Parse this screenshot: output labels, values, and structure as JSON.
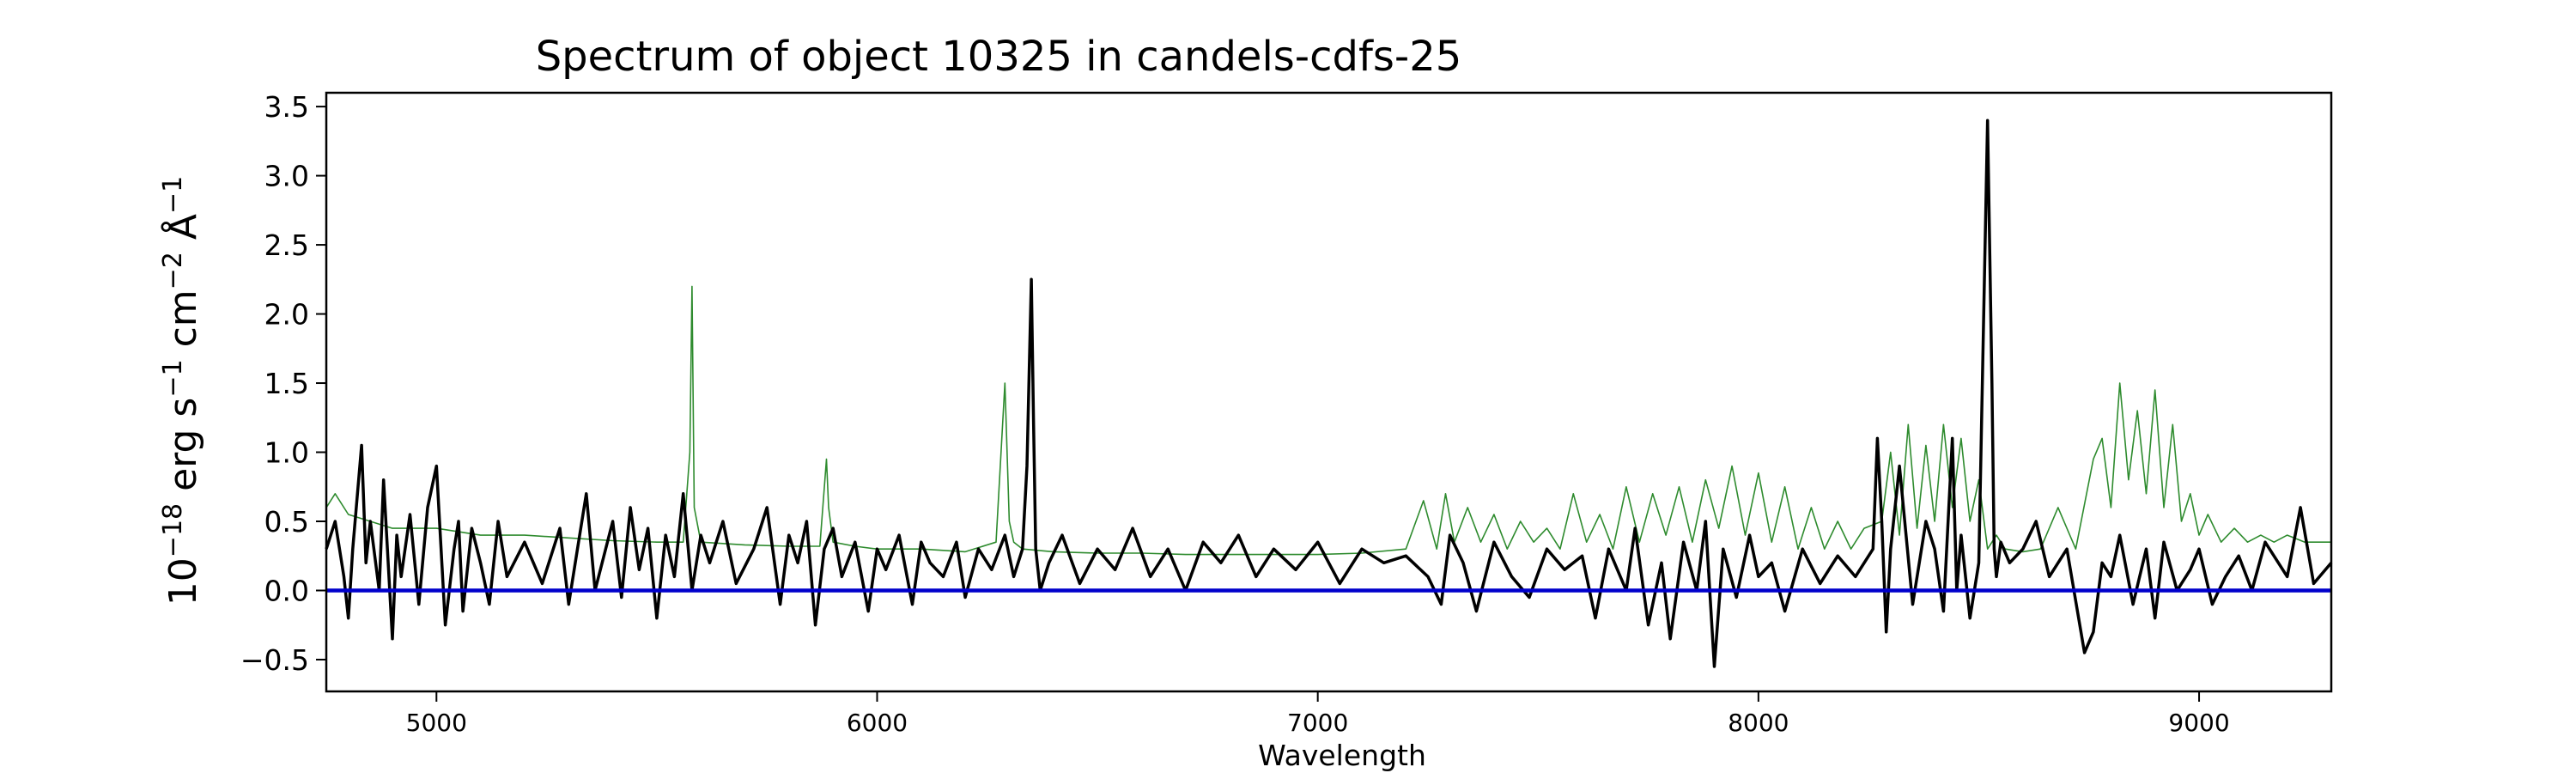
{
  "chart_data": {
    "type": "line",
    "title": "Spectrum of object 10325 in candels-cdfs-25",
    "xlabel": "Wavelength",
    "ylabel": {
      "base": "10",
      "exp1": "−18",
      "mid1": " erg s",
      "exp2": "−1",
      "mid2": " cm",
      "exp3": "−2",
      "mid3": " Å",
      "exp4": "−1"
    },
    "xlim": [
      4750,
      9300
    ],
    "ylim": [
      -0.73,
      3.6
    ],
    "x_ticks": [
      5000,
      6000,
      7000,
      8000,
      9000
    ],
    "y_ticks": [
      -0.5,
      0.0,
      0.5,
      1.0,
      1.5,
      2.0,
      2.5,
      3.0,
      3.5
    ],
    "x_tick_labels": [
      "5000",
      "6000",
      "7000",
      "8000",
      "9000"
    ],
    "y_tick_labels": [
      "−0.5",
      "0.0",
      "0.5",
      "1.0",
      "1.5",
      "2.0",
      "2.5",
      "3.0",
      "3.5"
    ],
    "grid": false,
    "legend": "none",
    "series": [
      {
        "role": "flux",
        "color": "#000000",
        "x": [
          4750,
          4770,
          4790,
          4800,
          4810,
          4830,
          4840,
          4850,
          4870,
          4880,
          4900,
          4910,
          4920,
          4940,
          4960,
          4980,
          5000,
          5020,
          5040,
          5050,
          5060,
          5080,
          5100,
          5120,
          5140,
          5160,
          5200,
          5240,
          5280,
          5300,
          5320,
          5340,
          5360,
          5400,
          5420,
          5440,
          5460,
          5480,
          5500,
          5520,
          5540,
          5560,
          5580,
          5600,
          5620,
          5650,
          5680,
          5720,
          5750,
          5780,
          5800,
          5820,
          5840,
          5860,
          5880,
          5900,
          5920,
          5950,
          5980,
          6000,
          6020,
          6050,
          6080,
          6100,
          6120,
          6150,
          6180,
          6200,
          6230,
          6260,
          6290,
          6310,
          6330,
          6340,
          6350,
          6355,
          6360,
          6370,
          6390,
          6420,
          6460,
          6500,
          6540,
          6580,
          6620,
          6660,
          6700,
          6740,
          6780,
          6820,
          6860,
          6900,
          6950,
          7000,
          7050,
          7100,
          7150,
          7200,
          7250,
          7280,
          7300,
          7330,
          7360,
          7400,
          7440,
          7480,
          7520,
          7560,
          7600,
          7630,
          7660,
          7700,
          7720,
          7750,
          7780,
          7800,
          7830,
          7860,
          7880,
          7900,
          7920,
          7950,
          7980,
          8000,
          8030,
          8060,
          8100,
          8140,
          8180,
          8220,
          8260,
          8270,
          8280,
          8290,
          8300,
          8320,
          8350,
          8380,
          8400,
          8420,
          8440,
          8450,
          8460,
          8480,
          8500,
          8520,
          8530,
          8535,
          8540,
          8550,
          8570,
          8600,
          8630,
          8660,
          8700,
          8740,
          8760,
          8780,
          8800,
          8820,
          8850,
          8880,
          8900,
          8920,
          8950,
          8980,
          9000,
          9030,
          9060,
          9090,
          9120,
          9150,
          9200,
          9230,
          9260,
          9300
        ],
        "y": [
          0.3,
          0.5,
          0.1,
          -0.2,
          0.3,
          1.05,
          0.2,
          0.5,
          0.0,
          0.8,
          -0.35,
          0.4,
          0.1,
          0.55,
          -0.1,
          0.6,
          0.9,
          -0.25,
          0.3,
          0.5,
          -0.15,
          0.45,
          0.2,
          -0.1,
          0.5,
          0.1,
          0.35,
          0.05,
          0.45,
          -0.1,
          0.3,
          0.7,
          0.0,
          0.5,
          -0.05,
          0.6,
          0.15,
          0.45,
          -0.2,
          0.4,
          0.1,
          0.7,
          0.0,
          0.4,
          0.2,
          0.5,
          0.05,
          0.3,
          0.6,
          -0.1,
          0.4,
          0.2,
          0.5,
          -0.25,
          0.3,
          0.45,
          0.1,
          0.35,
          -0.15,
          0.3,
          0.15,
          0.4,
          -0.1,
          0.35,
          0.2,
          0.1,
          0.35,
          -0.05,
          0.3,
          0.15,
          0.4,
          0.1,
          0.3,
          0.9,
          2.25,
          1.2,
          0.3,
          0.0,
          0.2,
          0.4,
          0.05,
          0.3,
          0.15,
          0.45,
          0.1,
          0.3,
          0.0,
          0.35,
          0.2,
          0.4,
          0.1,
          0.3,
          0.15,
          0.35,
          0.05,
          0.3,
          0.2,
          0.25,
          0.1,
          -0.1,
          0.4,
          0.2,
          -0.15,
          0.35,
          0.1,
          -0.05,
          0.3,
          0.15,
          0.25,
          -0.2,
          0.3,
          0.0,
          0.45,
          -0.25,
          0.2,
          -0.35,
          0.35,
          0.0,
          0.5,
          -0.55,
          0.3,
          -0.05,
          0.4,
          0.1,
          0.2,
          -0.15,
          0.3,
          0.05,
          0.25,
          0.1,
          0.3,
          1.1,
          0.5,
          -0.3,
          0.3,
          0.9,
          -0.1,
          0.5,
          0.3,
          -0.15,
          1.1,
          0.0,
          0.4,
          -0.2,
          0.2,
          3.4,
          1.5,
          0.3,
          0.1,
          0.35,
          0.2,
          0.3,
          0.5,
          0.1,
          0.3,
          -0.45,
          -0.3,
          0.2,
          0.1,
          0.4,
          -0.1,
          0.3,
          -0.2,
          0.35,
          0.0,
          0.15,
          0.3,
          -0.1,
          0.1,
          0.25,
          0.0,
          0.35,
          0.1,
          0.6,
          0.05,
          0.2
        ]
      },
      {
        "role": "error",
        "color": "#2e8b2e",
        "x": [
          4750,
          4770,
          4800,
          4850,
          4900,
          5000,
          5100,
          5200,
          5300,
          5400,
          5500,
          5560,
          5575,
          5580,
          5585,
          5600,
          5700,
          5800,
          5870,
          5885,
          5890,
          5900,
          5950,
          6000,
          6100,
          6200,
          6270,
          6290,
          6300,
          6310,
          6330,
          6400,
          6500,
          6600,
          6700,
          6800,
          6900,
          7000,
          7100,
          7200,
          7240,
          7270,
          7290,
          7310,
          7340,
          7370,
          7400,
          7430,
          7460,
          7490,
          7520,
          7550,
          7580,
          7610,
          7640,
          7670,
          7700,
          7730,
          7760,
          7790,
          7820,
          7850,
          7880,
          7910,
          7940,
          7970,
          8000,
          8030,
          8060,
          8090,
          8120,
          8150,
          8180,
          8210,
          8240,
          8280,
          8300,
          8320,
          8340,
          8360,
          8380,
          8400,
          8420,
          8440,
          8460,
          8480,
          8500,
          8520,
          8540,
          8560,
          8600,
          8640,
          8680,
          8720,
          8760,
          8780,
          8800,
          8820,
          8840,
          8860,
          8880,
          8900,
          8920,
          8940,
          8960,
          8980,
          9000,
          9020,
          9050,
          9080,
          9110,
          9140,
          9170,
          9200,
          9240,
          9280,
          9300
        ],
        "y": [
          0.6,
          0.7,
          0.55,
          0.5,
          0.45,
          0.45,
          0.4,
          0.4,
          0.38,
          0.36,
          0.35,
          0.35,
          1.0,
          2.2,
          0.6,
          0.35,
          0.33,
          0.32,
          0.32,
          0.95,
          0.6,
          0.35,
          0.32,
          0.3,
          0.3,
          0.28,
          0.35,
          1.5,
          0.5,
          0.35,
          0.3,
          0.28,
          0.27,
          0.27,
          0.26,
          0.26,
          0.26,
          0.26,
          0.27,
          0.3,
          0.65,
          0.3,
          0.7,
          0.35,
          0.6,
          0.35,
          0.55,
          0.3,
          0.5,
          0.35,
          0.45,
          0.3,
          0.7,
          0.35,
          0.55,
          0.3,
          0.75,
          0.35,
          0.7,
          0.4,
          0.75,
          0.35,
          0.8,
          0.45,
          0.9,
          0.4,
          0.85,
          0.35,
          0.75,
          0.3,
          0.6,
          0.3,
          0.5,
          0.3,
          0.45,
          0.5,
          1.0,
          0.4,
          1.2,
          0.45,
          1.05,
          0.5,
          1.2,
          0.6,
          1.1,
          0.5,
          0.8,
          0.3,
          0.4,
          0.3,
          0.28,
          0.3,
          0.6,
          0.3,
          0.95,
          1.1,
          0.6,
          1.5,
          0.8,
          1.3,
          0.7,
          1.45,
          0.6,
          1.2,
          0.5,
          0.7,
          0.4,
          0.55,
          0.35,
          0.45,
          0.35,
          0.4,
          0.35,
          0.4,
          0.35,
          0.35,
          0.35
        ]
      },
      {
        "role": "zero",
        "color": "#0000cc",
        "x": [
          4750,
          9300
        ],
        "y": [
          0.0,
          0.0
        ]
      }
    ]
  }
}
